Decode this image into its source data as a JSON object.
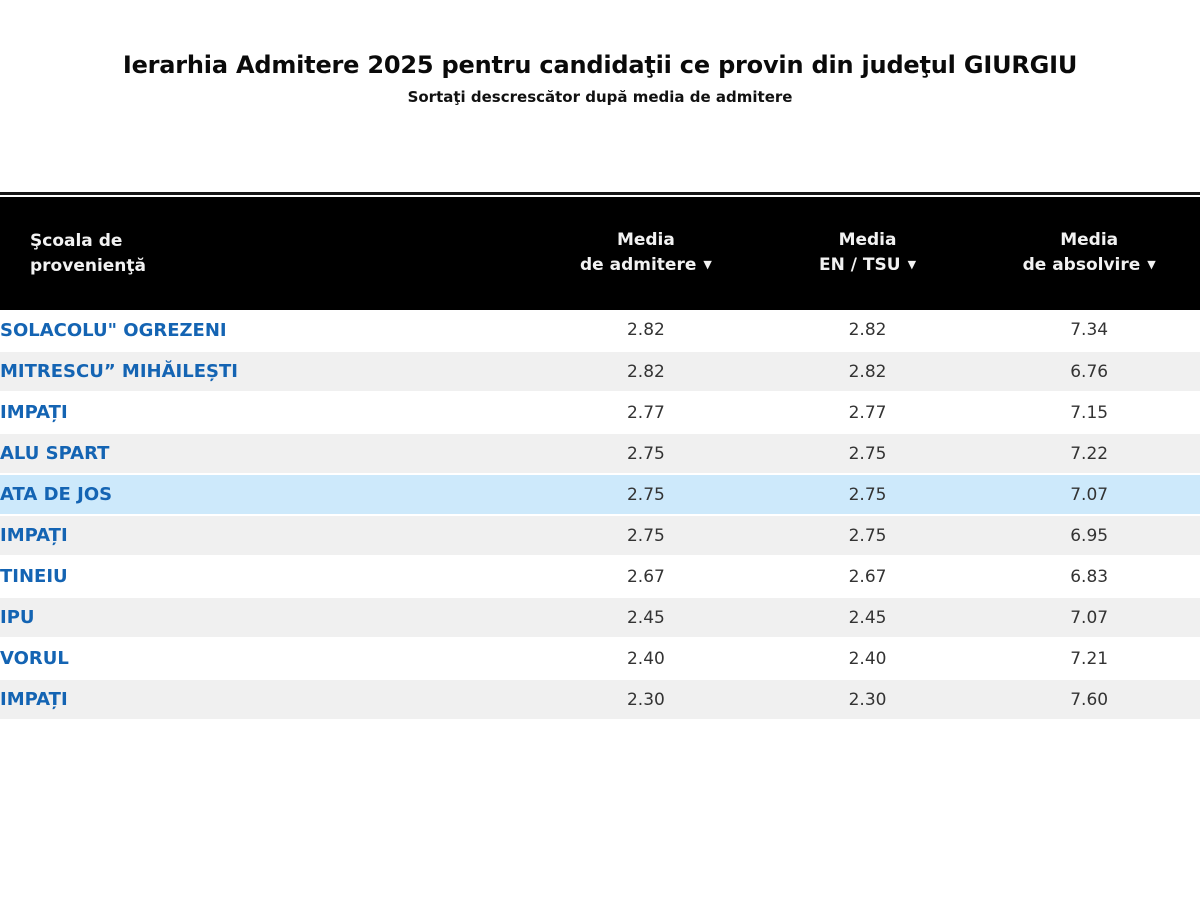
{
  "page": {
    "title": "Ierarhia Admitere 2025 pentru candidaţii ce provin din judeţul GIURGIU",
    "subtitle": "Sortaţi descrescător după media de admitere"
  },
  "colors": {
    "header_bg": "#000000",
    "header_text": "#f2f2f2",
    "link_blue": "#1464b3",
    "row_alt": "#f0f0f0",
    "row_highlight": "#cde9fb",
    "value_text": "#333333"
  },
  "table": {
    "columns": [
      {
        "label_line1": "Şcoala de",
        "label_line2": "provenienţă",
        "sortable": false,
        "sort_icon": ""
      },
      {
        "label_line1": "Media",
        "label_line2": "de admitere",
        "sortable": true,
        "sort_icon": "▼"
      },
      {
        "label_line1": "Media",
        "label_line2": "EN / TSU",
        "sortable": true,
        "sort_icon": "▼"
      },
      {
        "label_line1": "Media",
        "label_line2": "de absolvire",
        "sortable": true,
        "sort_icon": "▼"
      }
    ],
    "rows": [
      {
        "school": "SOLACOLU\" OGREZENI",
        "media_admitere": "2.82",
        "media_en_tsu": "2.82",
        "media_absolvire": "7.34",
        "highlighted": false
      },
      {
        "school": "MITRESCU” MIHĂILEȘTI",
        "media_admitere": "2.82",
        "media_en_tsu": "2.82",
        "media_absolvire": "6.76",
        "highlighted": false
      },
      {
        "school": "IMPAȚI",
        "media_admitere": "2.77",
        "media_en_tsu": "2.77",
        "media_absolvire": "7.15",
        "highlighted": false
      },
      {
        "school": "ALU SPART",
        "media_admitere": "2.75",
        "media_en_tsu": "2.75",
        "media_absolvire": "7.22",
        "highlighted": false
      },
      {
        "school": "ATA DE JOS",
        "media_admitere": "2.75",
        "media_en_tsu": "2.75",
        "media_absolvire": "7.07",
        "highlighted": true
      },
      {
        "school": "IMPAȚI",
        "media_admitere": "2.75",
        "media_en_tsu": "2.75",
        "media_absolvire": "6.95",
        "highlighted": false
      },
      {
        "school": "TINEIU",
        "media_admitere": "2.67",
        "media_en_tsu": "2.67",
        "media_absolvire": "6.83",
        "highlighted": false
      },
      {
        "school": "IPU",
        "media_admitere": "2.45",
        "media_en_tsu": "2.45",
        "media_absolvire": "7.07",
        "highlighted": false
      },
      {
        "school": "VORUL",
        "media_admitere": "2.40",
        "media_en_tsu": "2.40",
        "media_absolvire": "7.21",
        "highlighted": false
      },
      {
        "school": "IMPAȚI",
        "media_admitere": "2.30",
        "media_en_tsu": "2.30",
        "media_absolvire": "7.60",
        "highlighted": false
      }
    ]
  }
}
